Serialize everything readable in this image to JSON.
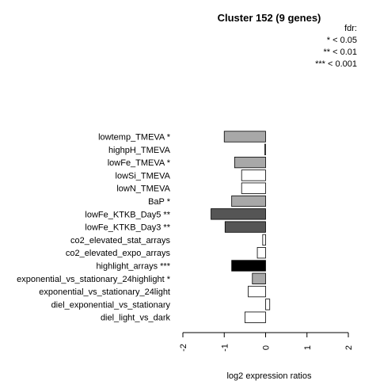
{
  "chart_data": {
    "type": "bar",
    "orientation": "horizontal",
    "title": "Cluster 152 (9 genes)",
    "xlabel": "log2 expression ratios",
    "ylabel": "",
    "xlim": [
      -2,
      2
    ],
    "xticks": [
      "-2",
      "-1",
      "0",
      "1",
      "2"
    ],
    "legend": {
      "title": "fdr:",
      "entries": [
        "* < 0.05",
        "** < 0.01",
        "*** < 0.001"
      ],
      "position": "top-right"
    },
    "categories": [
      "lowtemp_TMEVA *",
      "highpH_TMEVA",
      "lowFe_TMEVA *",
      "lowSi_TMEVA",
      "lowN_TMEVA",
      "BaP *",
      "lowFe_KTKB_Day5 **",
      "lowFe_KTKB_Day3 **",
      "co2_elevated_stat_arrays",
      "co2_elevated_expo_arrays",
      "highlight_arrays ***",
      "exponential_vs_stationary_24highlight *",
      "exponential_vs_stationary_24light",
      "diel_exponential_vs_stationary",
      "diel_light_vs_dark"
    ],
    "values": [
      -1.0,
      -0.02,
      -0.75,
      -0.58,
      -0.58,
      -0.82,
      -1.32,
      -0.98,
      -0.07,
      -0.2,
      -0.82,
      -0.32,
      -0.42,
      0.1,
      -0.5
    ],
    "colors": [
      "#a8a8a8",
      "#ffffff",
      "#a8a8a8",
      "#ffffff",
      "#ffffff",
      "#a8a8a8",
      "#555555",
      "#555555",
      "#ffffff",
      "#ffffff",
      "#000000",
      "#a8a8a8",
      "#ffffff",
      "#ffffff",
      "#ffffff"
    ]
  }
}
